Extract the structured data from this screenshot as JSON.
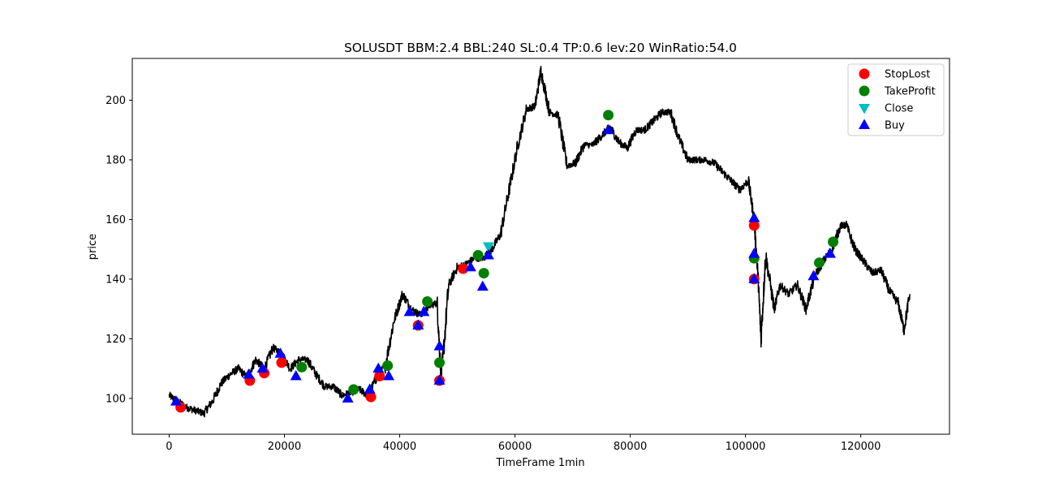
{
  "chart_data": {
    "type": "line",
    "title": "SOLUSDT BBM:2.4 BBL:240 SL:0.4 TP:0.6 lev:20 WinRatio:54.0",
    "xlabel": "TimeFrame 1min",
    "ylabel": "price",
    "xlim": [
      -6400,
      135400
    ],
    "ylim": [
      88,
      214
    ],
    "x_ticks": [
      0,
      20000,
      40000,
      60000,
      80000,
      100000,
      120000
    ],
    "y_ticks": [
      100,
      120,
      140,
      160,
      180,
      200
    ],
    "grid": false,
    "legend_position": "top-right",
    "colors": {
      "price_line": "#000000",
      "StopLost": "#ff0000",
      "TakeProfit": "#008000",
      "Close": "#00bfbf",
      "Buy": "#0000ff"
    },
    "series": [
      {
        "type": "line",
        "x": [
          0,
          1500,
          3000,
          4500,
          6000,
          7500,
          9000,
          10500,
          12000,
          13500,
          15000,
          16500,
          18000,
          19500,
          21000,
          22500,
          24000,
          25500,
          27000,
          28500,
          30000,
          31500,
          33000,
          34500,
          36000,
          37500,
          39000,
          40500,
          42000,
          43500,
          45000,
          46500,
          47200,
          48500,
          50000,
          51500,
          53000,
          54500,
          56000,
          57500,
          59000,
          60500,
          62000,
          63500,
          64500,
          66000,
          67500,
          69000,
          70500,
          72000,
          73500,
          75000,
          76500,
          78000,
          79500,
          81000,
          82500,
          84000,
          85500,
          87000,
          88500,
          90000,
          91500,
          93000,
          94500,
          96000,
          97500,
          99000,
          100500,
          101500,
          102200,
          102700,
          103500,
          105000,
          106000,
          107500,
          109000,
          110500,
          112000,
          113500,
          115000,
          116500,
          117500,
          119000,
          120500,
          122000,
          123500,
          125000,
          126500,
          127500,
          128500
        ],
        "values": [
          101,
          99,
          97,
          96,
          95,
          99,
          105,
          108,
          110,
          107,
          113,
          110,
          117,
          115,
          110,
          113,
          113,
          108,
          104,
          104,
          101,
          102,
          103,
          101,
          107,
          111,
          126,
          135,
          130,
          128,
          131,
          132,
          106,
          138,
          144,
          145,
          147,
          147,
          150,
          155,
          170,
          185,
          197,
          198,
          210,
          196,
          195,
          178,
          179,
          185,
          185,
          188,
          191,
          186,
          184,
          190,
          190,
          193,
          196,
          196,
          187,
          180,
          180,
          180,
          179,
          176,
          173,
          170,
          173,
          160,
          140,
          120,
          148,
          130,
          138,
          135,
          138,
          130,
          141,
          146,
          150,
          158,
          158,
          150,
          146,
          142,
          143,
          136,
          132,
          123,
          135
        ]
      }
    ],
    "markers": {
      "StopLost": {
        "x": [
          2000,
          14000,
          16500,
          19500,
          35000,
          36500,
          43200,
          46900,
          51000,
          101500,
          101500
        ],
        "y": [
          97,
          106,
          108.5,
          112,
          100.5,
          107.5,
          124.5,
          106,
          143.5,
          158,
          140
        ]
      },
      "TakeProfit": {
        "x": [
          23000,
          32000,
          37900,
          44800,
          46900,
          53600,
          54600,
          76200,
          101500,
          112800,
          115200
        ],
        "y": [
          110.5,
          103,
          111,
          132.5,
          112,
          148,
          142,
          195,
          147,
          145.5,
          152.5
        ]
      },
      "Close": {
        "x": [
          55400
        ],
        "y": [
          151
        ]
      },
      "Buy": {
        "x": [
          1200,
          13800,
          16200,
          19300,
          22000,
          31000,
          34800,
          36300,
          38100,
          41700,
          43200,
          44200,
          46900,
          46900,
          52300,
          54400,
          55400,
          76200,
          101500,
          101500,
          101500,
          111800,
          114700
        ],
        "y": [
          99,
          108,
          110,
          115,
          107.5,
          100,
          103,
          110,
          107.5,
          129,
          124.5,
          129,
          117.5,
          106,
          144,
          137.5,
          148,
          190,
          160.5,
          148.5,
          140,
          141,
          148.5
        ]
      }
    },
    "legend": [
      {
        "label": "StopLost",
        "marker": "circle"
      },
      {
        "label": "TakeProfit",
        "marker": "circle"
      },
      {
        "label": "Close",
        "marker": "triangle-down"
      },
      {
        "label": "Buy",
        "marker": "triangle-up"
      }
    ]
  }
}
